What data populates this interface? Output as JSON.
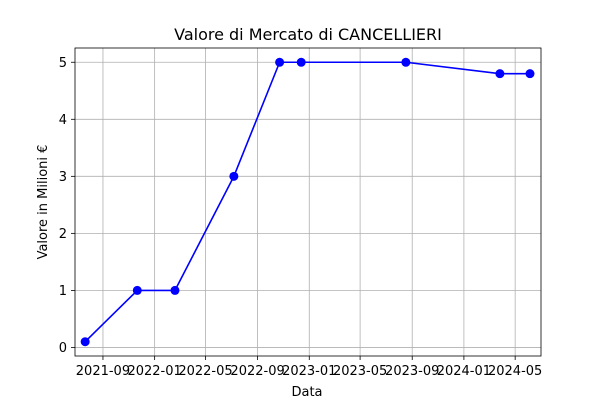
{
  "chart_data": {
    "type": "line",
    "title": "Valore di Mercato di CANCELLIERI",
    "xlabel": "Data",
    "ylabel": "Valore in Milioni €",
    "x_ticks": [
      "2021-09",
      "2022-01",
      "2022-05",
      "2022-09",
      "2023-01",
      "2023-05",
      "2023-09",
      "2024-01",
      "2024-05"
    ],
    "y_ticks": [
      "0",
      "1",
      "2",
      "3",
      "4",
      "5"
    ],
    "xlim": [
      "2021-06-27",
      "2024-07-01"
    ],
    "ylim": [
      -0.15,
      5.25
    ],
    "grid": true,
    "series": [
      {
        "color": "#0000ff",
        "marker": "circle",
        "points": [
          {
            "x": "2021-07-21",
            "y": 0.1
          },
          {
            "x": "2021-11-21",
            "y": 1
          },
          {
            "x": "2022-02-18",
            "y": 1
          },
          {
            "x": "2022-07-07",
            "y": 3
          },
          {
            "x": "2022-10-23",
            "y": 5
          },
          {
            "x": "2022-12-13",
            "y": 5
          },
          {
            "x": "2023-08-17",
            "y": 5
          },
          {
            "x": "2024-03-26",
            "y": 4.8
          },
          {
            "x": "2024-06-05",
            "y": 4.8
          }
        ]
      }
    ]
  }
}
